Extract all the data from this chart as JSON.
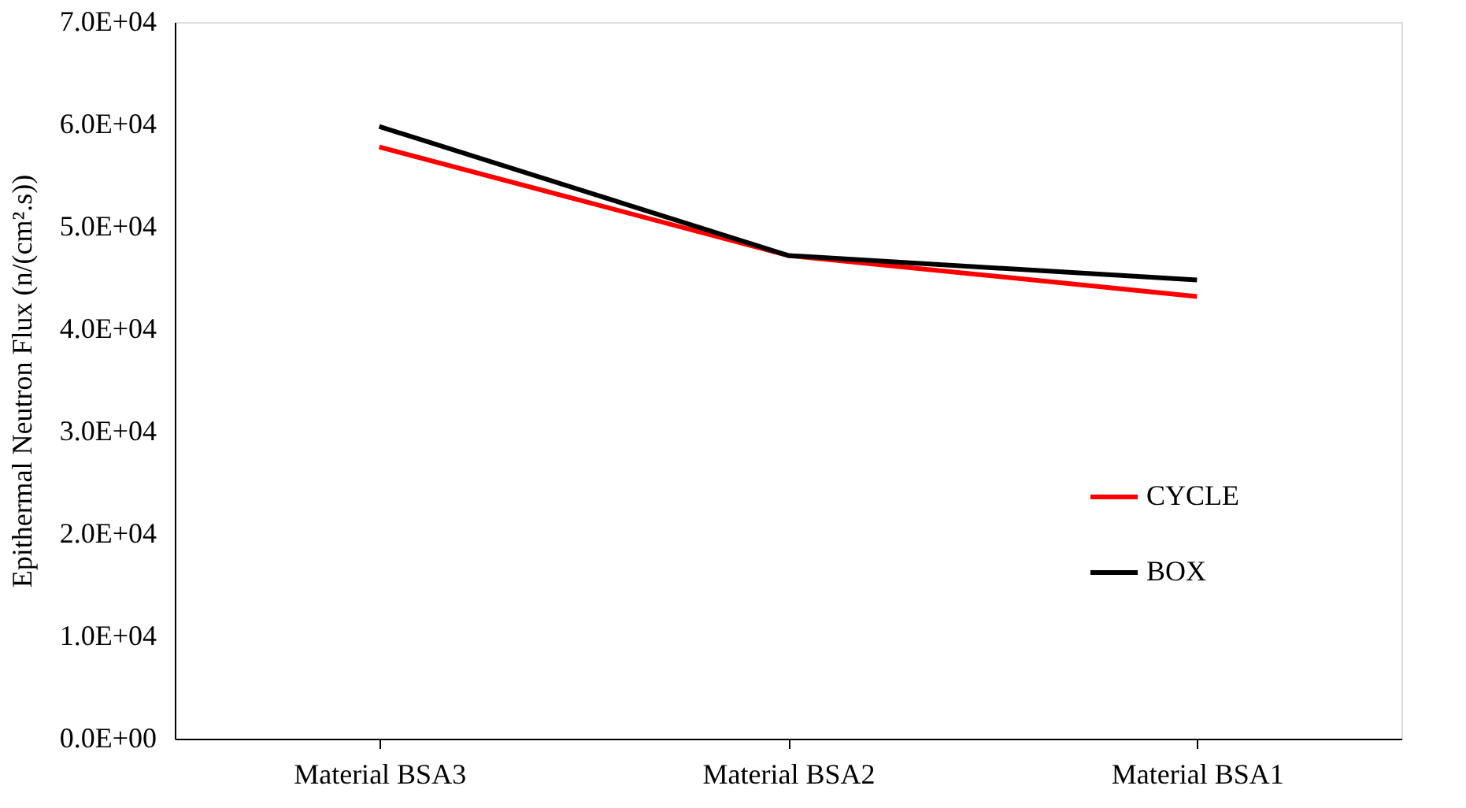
{
  "chart_data": {
    "type": "line",
    "ylabel": "Epithermal Neutron Flux (n/(cm².s))",
    "categories": [
      "Material BSA3",
      "Material BSA2",
      "Material BSA1"
    ],
    "series": [
      {
        "name": "CYCLE",
        "color": "#ff0000",
        "values": [
          57800,
          47200,
          43200
        ]
      },
      {
        "name": "BOX",
        "color": "#000000",
        "values": [
          59800,
          47200,
          44800
        ]
      }
    ],
    "ylim": [
      0,
      70000
    ],
    "yticks": [
      {
        "value": 0,
        "label": "0.0E+00"
      },
      {
        "value": 10000,
        "label": "1.0E+04"
      },
      {
        "value": 20000,
        "label": "2.0E+04"
      },
      {
        "value": 30000,
        "label": "3.0E+04"
      },
      {
        "value": 40000,
        "label": "4.0E+04"
      },
      {
        "value": 50000,
        "label": "5.0E+04"
      },
      {
        "value": 60000,
        "label": "6.0E+04"
      },
      {
        "value": 70000,
        "label": "7.0E+04"
      }
    ],
    "grid": false,
    "legend": "right",
    "marker": "none",
    "line_style": "solid"
  }
}
